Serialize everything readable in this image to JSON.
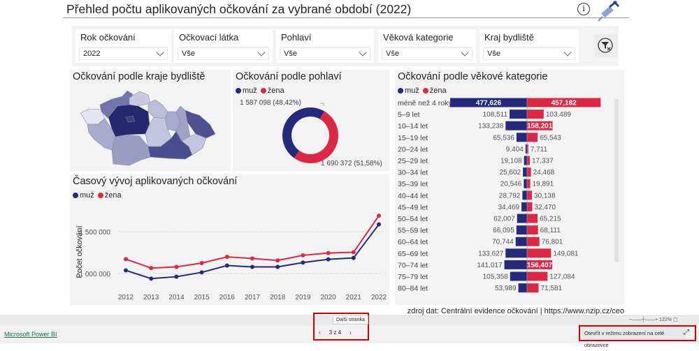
{
  "header": {
    "title": "Přehled počtu aplikovaných očkování za vybrané období (2022)",
    "info_icon": "info-icon",
    "logo_icon": "syringe-icon"
  },
  "filters": [
    {
      "label": "Rok očkování",
      "value": "2022"
    },
    {
      "label": "Očkovací látka",
      "value": "Vše"
    },
    {
      "label": "Pohlaví",
      "value": "Vše"
    },
    {
      "label": "Věková kategorie",
      "value": "Vše"
    },
    {
      "label": "Kraj bydliště",
      "value": "Vše"
    }
  ],
  "clear_filters_icon": "filter-clear-icon",
  "colors": {
    "muz": "#252a7a",
    "zena": "#dc2847",
    "panel": "#f3f3f3"
  },
  "legend": {
    "muz": "muž",
    "zena": "žena"
  },
  "map": {
    "title": "Očkování podle kraje bydliště"
  },
  "chart_data": [
    {
      "type": "pie",
      "title": "Očkování podle pohlaví",
      "donut": true,
      "slices": [
        {
          "name": "muž",
          "value": 1587098,
          "label": "1 587 098 (48,42%)"
        },
        {
          "name": "žena",
          "value": 1690372,
          "label": "1 690 372 (51,58%)"
        }
      ]
    },
    {
      "type": "line",
      "title": "Časový vývoj aplikovaných očkování",
      "ylabel": "Počet očkování",
      "x": [
        2012,
        2013,
        2014,
        2015,
        2016,
        2017,
        2018,
        2019,
        2020,
        2021,
        2022
      ],
      "yticks": [
        "1 000 000",
        "1 500 000"
      ],
      "ytick_values": [
        1000000,
        1500000
      ],
      "ylim": [
        870000,
        1750000
      ],
      "grid": true,
      "series": [
        {
          "name": "muž",
          "values": [
            1038000,
            940000,
            962000,
            1014000,
            1096000,
            1079000,
            1079000,
            1131000,
            1170000,
            1186000,
            1587098
          ]
        },
        {
          "name": "žena",
          "values": [
            1172000,
            1066000,
            1079000,
            1125000,
            1199000,
            1180000,
            1156000,
            1218000,
            1245000,
            1254000,
            1690372
          ]
        }
      ]
    },
    {
      "type": "bar",
      "title": "Očkování podle věkové kategorie",
      "orientation": "horizontal-butterfly",
      "categories": [
        "méně než 4 roky",
        "5–9 let",
        "10–14 let",
        "15–19 let",
        "20–24 let",
        "25–29 let",
        "30–34 let",
        "35–39 let",
        "40–44 let",
        "45–49 let",
        "50–54 let",
        "55–59 let",
        "60–64 let",
        "65–69 let",
        "70–74 let",
        "75–79 let",
        "80–84 let"
      ],
      "series": [
        {
          "name": "muž",
          "values": [
            477626,
            108511,
            133238,
            65536,
            9404,
            19108,
            25602,
            20546,
            28792,
            34469,
            62007,
            66095,
            70744,
            133627,
            141017,
            105358,
            53989
          ],
          "labels": [
            "477,626",
            "108,511",
            "133,238",
            "65,536",
            "9,404",
            "19,108",
            "25,602",
            "20,546",
            "28,792",
            "34,469",
            "62,007",
            "66,095",
            "70,744",
            "133,627",
            "141,017",
            "105,358",
            "53,989"
          ]
        },
        {
          "name": "žena",
          "values": [
            457182,
            103489,
            158201,
            65543,
            7711,
            17337,
            24468,
            19891,
            30138,
            32470,
            65215,
            68111,
            76801,
            149081,
            156407,
            127084,
            71581
          ],
          "labels": [
            "457,182",
            "103,489",
            "158,201",
            "65,543",
            "7,711",
            "17,337",
            "24,468",
            "19,891",
            "30,138",
            "32,470",
            "65,215",
            "68,111",
            "76,801",
            "149,081",
            "156,407",
            "127,084",
            "71,581"
          ]
        }
      ]
    }
  ],
  "source": "zdroj dat: Centrální evidence očkování | https://www.nzip.cz/ceo",
  "footer": {
    "powerbi_link": "Microsoft Power BI",
    "tooltip": "Další stránka",
    "page": "3 z 4",
    "prev": "‹",
    "next": "›",
    "zoom": "122%",
    "fullscreen": "Otevřít v režimu zobrazení na celé obrazovce",
    "expand_icon": "⤢"
  }
}
